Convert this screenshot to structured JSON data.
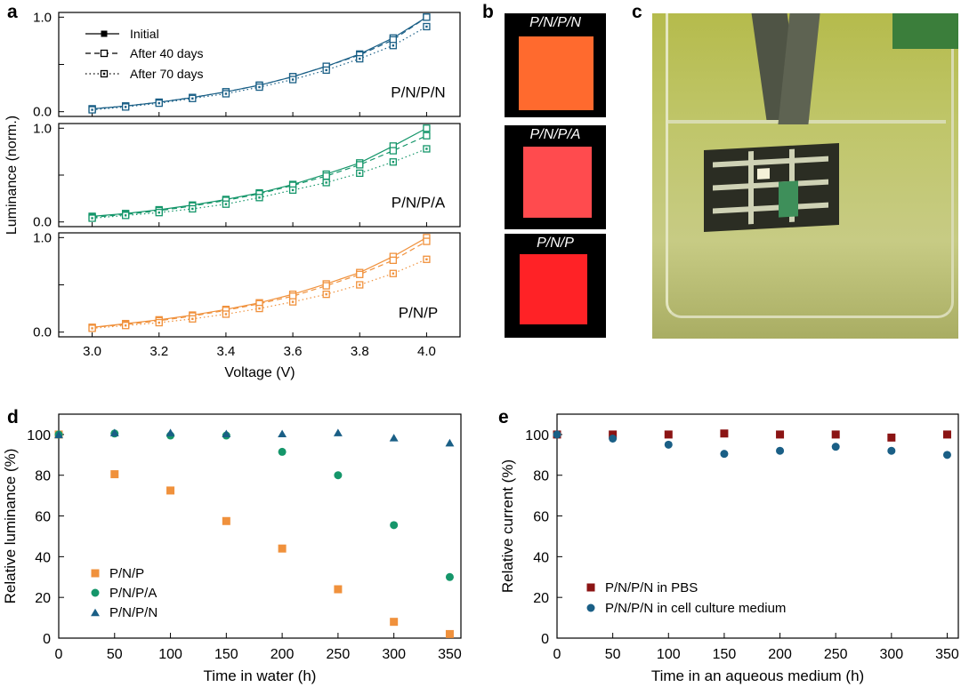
{
  "panels": {
    "a": {
      "letter": "a",
      "ylabel": "Luminance (norm.)",
      "xlabel": "Voltage (V)"
    },
    "b": {
      "letter": "b",
      "tiles": [
        "P/N/P/N",
        "P/N/P/A",
        "P/N/P"
      ]
    },
    "c": {
      "letter": "c"
    },
    "d": {
      "letter": "d"
    },
    "e": {
      "letter": "e"
    }
  },
  "chart_data": [
    {
      "id": "a",
      "type": "line",
      "xlabel": "Voltage (V)",
      "ylabel": "Luminance (norm.)",
      "x": [
        3.0,
        3.1,
        3.2,
        3.3,
        3.4,
        3.5,
        3.6,
        3.7,
        3.8,
        3.9,
        4.0
      ],
      "xticks": [
        "3.0",
        "3.2",
        "3.4",
        "3.6",
        "3.8",
        "4.0"
      ],
      "xlim": [
        2.9,
        4.1
      ],
      "ylim": [
        -0.05,
        1.05
      ],
      "legend": [
        "Initial",
        "After 40 days",
        "After 70 days"
      ],
      "subplots": [
        {
          "label": "P/N/P/N",
          "color": "#1a5f86",
          "yticks": [
            "0.0",
            "1.0"
          ],
          "series": [
            {
              "name": "Initial",
              "values": [
                0.03,
                0.06,
                0.1,
                0.15,
                0.21,
                0.28,
                0.37,
                0.48,
                0.61,
                0.78,
                1.0
              ]
            },
            {
              "name": "After 40 days",
              "values": [
                0.03,
                0.06,
                0.1,
                0.15,
                0.21,
                0.28,
                0.37,
                0.48,
                0.6,
                0.76,
                1.0
              ]
            },
            {
              "name": "After 70 days",
              "values": [
                0.02,
                0.05,
                0.09,
                0.14,
                0.19,
                0.26,
                0.34,
                0.44,
                0.56,
                0.7,
                0.9
              ]
            }
          ]
        },
        {
          "label": "P/N/P/A",
          "color": "#15966a",
          "yticks": [
            "0.0",
            "1.0"
          ],
          "series": [
            {
              "name": "Initial",
              "values": [
                0.06,
                0.09,
                0.13,
                0.18,
                0.24,
                0.31,
                0.4,
                0.51,
                0.63,
                0.81,
                1.0
              ]
            },
            {
              "name": "After 40 days",
              "values": [
                0.05,
                0.08,
                0.12,
                0.17,
                0.23,
                0.3,
                0.39,
                0.49,
                0.61,
                0.76,
                0.92
              ]
            },
            {
              "name": "After 70 days",
              "values": [
                0.04,
                0.07,
                0.1,
                0.14,
                0.19,
                0.26,
                0.34,
                0.42,
                0.52,
                0.64,
                0.78
              ]
            }
          ]
        },
        {
          "label": "P/N/P",
          "color": "#f0913c",
          "yticks": [
            "0.0",
            "1.0"
          ],
          "series": [
            {
              "name": "Initial",
              "values": [
                0.05,
                0.09,
                0.13,
                0.18,
                0.24,
                0.31,
                0.4,
                0.51,
                0.63,
                0.8,
                1.0
              ]
            },
            {
              "name": "After 40 days",
              "values": [
                0.05,
                0.08,
                0.12,
                0.17,
                0.23,
                0.3,
                0.38,
                0.49,
                0.61,
                0.76,
                0.96
              ]
            },
            {
              "name": "After 70 days",
              "values": [
                0.04,
                0.07,
                0.1,
                0.14,
                0.19,
                0.25,
                0.32,
                0.4,
                0.5,
                0.62,
                0.77
              ]
            }
          ]
        }
      ]
    },
    {
      "id": "d",
      "type": "scatter",
      "xlabel": "Time in water (h)",
      "ylabel": "Relative luminance (%)",
      "xlim": [
        0,
        360
      ],
      "ylim": [
        0,
        110
      ],
      "xticks": [
        0,
        50,
        100,
        150,
        200,
        250,
        300,
        350
      ],
      "yticks": [
        0,
        20,
        40,
        60,
        80,
        100
      ],
      "series": [
        {
          "name": "P/N/P",
          "color": "#f0913c",
          "marker": "square",
          "x": [
            0,
            50,
            100,
            150,
            200,
            250,
            300,
            350
          ],
          "y": [
            100,
            80.5,
            72.5,
            57.5,
            44,
            24,
            8,
            2
          ]
        },
        {
          "name": "P/N/P/A",
          "color": "#15966a",
          "marker": "circle",
          "x": [
            0,
            50,
            100,
            150,
            200,
            250,
            300,
            350
          ],
          "y": [
            100,
            100.5,
            99.5,
            99.5,
            91.5,
            80,
            55.5,
            30
          ]
        },
        {
          "name": "P/N/P/N",
          "color": "#1a5f86",
          "marker": "triangle",
          "x": [
            0,
            50,
            100,
            150,
            200,
            250,
            300,
            350
          ],
          "y": [
            100,
            101,
            101,
            100.5,
            100.5,
            101,
            98.5,
            96
          ]
        }
      ]
    },
    {
      "id": "e",
      "type": "scatter",
      "xlabel": "Time in an aqueous medium (h)",
      "ylabel": "Relative current (%)",
      "xlim": [
        0,
        360
      ],
      "ylim": [
        0,
        110
      ],
      "xticks": [
        0,
        50,
        100,
        150,
        200,
        250,
        300,
        350
      ],
      "yticks": [
        0,
        20,
        40,
        60,
        80,
        100
      ],
      "series": [
        {
          "name": "P/N/P/N in PBS",
          "color": "#8b1414",
          "marker": "square",
          "x": [
            0,
            50,
            100,
            150,
            200,
            250,
            300,
            350
          ],
          "y": [
            100,
            100,
            100,
            100.5,
            100,
            100,
            98.5,
            100
          ]
        },
        {
          "name": "P/N/P/N in cell culture medium",
          "color": "#1a5f86",
          "marker": "circle",
          "x": [
            0,
            50,
            100,
            150,
            200,
            250,
            300,
            350
          ],
          "y": [
            100,
            98,
            95,
            90.5,
            92,
            94,
            92,
            90
          ]
        }
      ]
    }
  ]
}
